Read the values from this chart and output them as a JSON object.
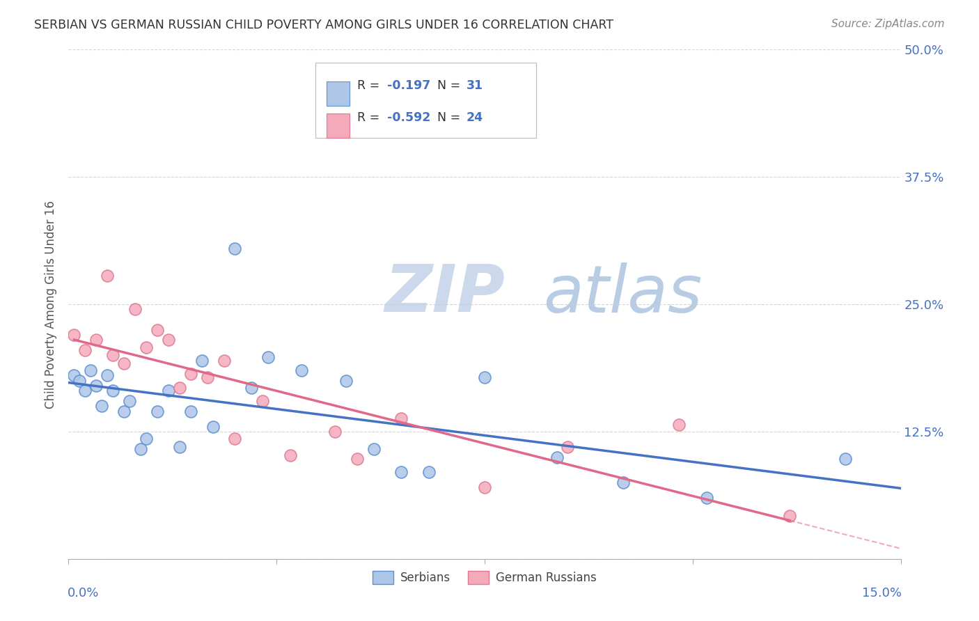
{
  "title": "SERBIAN VS GERMAN RUSSIAN CHILD POVERTY AMONG GIRLS UNDER 16 CORRELATION CHART",
  "source": "Source: ZipAtlas.com",
  "ylabel": "Child Poverty Among Girls Under 16",
  "blue_color": "#4472c4",
  "pink_color": "#e06888",
  "blue_scatter_face": "#aec6e8",
  "blue_scatter_edge": "#5a8fd0",
  "pink_scatter_face": "#f4aabb",
  "pink_scatter_edge": "#e07890",
  "background": "#ffffff",
  "grid_color": "#cccccc",
  "watermark_color": "#d8e8f8",
  "axis_label_color": "#4472c4",
  "xlim": [
    0.0,
    0.15
  ],
  "ylim": [
    0.0,
    0.5
  ],
  "serbian_x": [
    0.001,
    0.002,
    0.003,
    0.004,
    0.005,
    0.006,
    0.007,
    0.008,
    0.01,
    0.011,
    0.013,
    0.014,
    0.016,
    0.018,
    0.02,
    0.022,
    0.024,
    0.026,
    0.03,
    0.033,
    0.036,
    0.042,
    0.05,
    0.055,
    0.06,
    0.065,
    0.075,
    0.088,
    0.1,
    0.115,
    0.14
  ],
  "serbian_y": [
    0.18,
    0.175,
    0.165,
    0.185,
    0.17,
    0.15,
    0.18,
    0.165,
    0.145,
    0.155,
    0.108,
    0.118,
    0.145,
    0.165,
    0.11,
    0.145,
    0.195,
    0.13,
    0.305,
    0.168,
    0.198,
    0.185,
    0.175,
    0.108,
    0.085,
    0.085,
    0.178,
    0.1,
    0.075,
    0.06,
    0.098
  ],
  "german_russian_x": [
    0.001,
    0.003,
    0.005,
    0.007,
    0.008,
    0.01,
    0.012,
    0.014,
    0.016,
    0.018,
    0.02,
    0.022,
    0.025,
    0.028,
    0.03,
    0.035,
    0.04,
    0.048,
    0.052,
    0.06,
    0.075,
    0.09,
    0.11,
    0.13
  ],
  "german_russian_y": [
    0.22,
    0.205,
    0.215,
    0.278,
    0.2,
    0.192,
    0.245,
    0.208,
    0.225,
    0.215,
    0.168,
    0.182,
    0.178,
    0.195,
    0.118,
    0.155,
    0.102,
    0.125,
    0.098,
    0.138,
    0.07,
    0.11,
    0.132,
    0.042
  ],
  "legend_R1": "-0.197",
  "legend_N1": "31",
  "legend_R2": "-0.592",
  "legend_N2": "24"
}
